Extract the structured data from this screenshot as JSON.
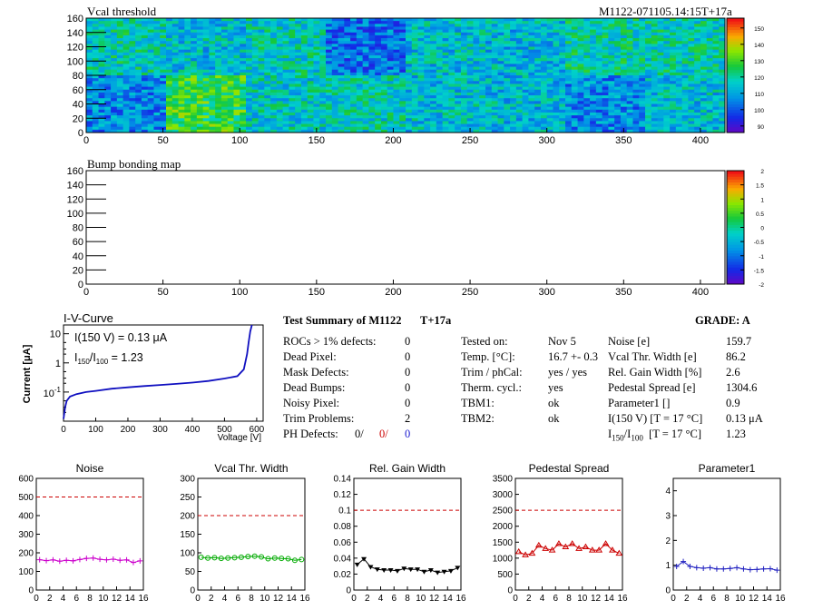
{
  "header": {
    "vcal_title": "Vcal threshold",
    "module_id": "M1122-071105.14:15T+17a",
    "bump_title": "Bump bonding map"
  },
  "colors": {
    "accent_red": "#cc0000",
    "accent_blue": "#1a1ad0",
    "iv_line": "#1010c0",
    "magenta": "#cc00cc",
    "green": "#00aa00",
    "red_line": "#cc0000"
  },
  "chart_data": [
    {
      "type": "heatmap",
      "name": "vcal",
      "title": "Vcal threshold",
      "xlim": [
        0,
        416
      ],
      "ylim": [
        0,
        160
      ],
      "x_ticks": [
        "0",
        "50",
        "100",
        "150",
        "200",
        "250",
        "300",
        "350",
        "400"
      ],
      "y_ticks": [
        "0",
        "20",
        "40",
        "60",
        "80",
        "100",
        "120",
        "140",
        "160"
      ],
      "colorbar_ticks": [
        "90",
        "100",
        "110",
        "120",
        "130",
        "140",
        "150"
      ],
      "colorbar_range": [
        86,
        156
      ],
      "roc_grid": {
        "cols": 8,
        "rows": 2,
        "roc_width": 52,
        "roc_height": 80
      },
      "roc_mean_top": [
        118,
        114,
        117,
        103,
        114,
        113,
        119,
        118
      ],
      "roc_mean_bottom": [
        106,
        128,
        116,
        117,
        114,
        113,
        106,
        114
      ]
    },
    {
      "type": "heatmap",
      "name": "bump",
      "title": "Bump bonding map",
      "xlim": [
        0,
        416
      ],
      "ylim": [
        0,
        160
      ],
      "x_ticks": [
        "0",
        "50",
        "100",
        "150",
        "200",
        "250",
        "300",
        "350",
        "400"
      ],
      "y_ticks": [
        "0",
        "20",
        "40",
        "60",
        "80",
        "100",
        "120",
        "140",
        "160"
      ],
      "colorbar_ticks": [
        "2",
        "1.5",
        "1",
        "0.5",
        "0",
        "-0.5",
        "-1",
        "-1.5",
        "-2"
      ],
      "colorbar_range": [
        -2,
        2
      ]
    },
    {
      "type": "line",
      "name": "iv",
      "title": "I-V-Curve",
      "xlabel": "Voltage [V]",
      "ylabel": "Current [μA]",
      "xlim": [
        0,
        620
      ],
      "ylim_log": [
        0.01,
        20
      ],
      "x_ticks": [
        "0",
        "100",
        "200",
        "300",
        "400",
        "500",
        "600"
      ],
      "y_ticks": [
        "10",
        "1",
        "10^-1"
      ],
      "annotation_1": "I(150 V) = 0.13 μA",
      "annotation_2_main": "I",
      "annotation_2_sub1": "150",
      "annotation_2_slash": "/I",
      "annotation_2_sub2": "100",
      "annotation_2_value": " =  1.23",
      "x": [
        0,
        5,
        10,
        20,
        40,
        70,
        100,
        150,
        200,
        250,
        300,
        350,
        400,
        450,
        500,
        540,
        560,
        570,
        575,
        580,
        585
      ],
      "y": [
        0.012,
        0.03,
        0.05,
        0.07,
        0.085,
        0.1,
        0.11,
        0.13,
        0.145,
        0.16,
        0.175,
        0.19,
        0.21,
        0.24,
        0.29,
        0.35,
        0.6,
        2.0,
        5.0,
        12.0,
        25.0
      ]
    },
    {
      "type": "line",
      "name": "noise",
      "title": "Noise",
      "xlim": [
        0,
        16
      ],
      "ylim": [
        0,
        600
      ],
      "x_ticks": [
        "0",
        "2",
        "4",
        "6",
        "8",
        "10",
        "12",
        "14",
        "16"
      ],
      "y_ticks": [
        "0",
        "100",
        "200",
        "300",
        "400",
        "500",
        "600"
      ],
      "ref_line": 500,
      "values": [
        163,
        158,
        162,
        155,
        160,
        157,
        164,
        170,
        172,
        165,
        162,
        166,
        160,
        162,
        148,
        157
      ]
    },
    {
      "type": "line",
      "name": "vcalw",
      "title": "Vcal Thr. Width",
      "xlim": [
        0,
        16
      ],
      "ylim": [
        0,
        300
      ],
      "x_ticks": [
        "0",
        "2",
        "4",
        "6",
        "8",
        "10",
        "12",
        "14",
        "16"
      ],
      "y_ticks": [
        "0",
        "50",
        "100",
        "150",
        "200",
        "250",
        "300"
      ],
      "ref_line": 200,
      "values": [
        88,
        86,
        87,
        85,
        86,
        87,
        88,
        90,
        91,
        89,
        84,
        86,
        85,
        84,
        80,
        82
      ]
    },
    {
      "type": "line",
      "name": "gain",
      "title": "Rel. Gain Width",
      "xlim": [
        0,
        16
      ],
      "ylim": [
        0,
        0.14
      ],
      "x_ticks": [
        "0",
        "2",
        "4",
        "6",
        "8",
        "10",
        "12",
        "14",
        "16"
      ],
      "y_ticks": [
        "0",
        "0.02",
        "0.04",
        "0.06",
        "0.08",
        "0.1",
        "0.12",
        "0.14"
      ],
      "ref_line": 0.1,
      "values": [
        0.032,
        0.039,
        0.029,
        0.026,
        0.025,
        0.025,
        0.024,
        0.027,
        0.026,
        0.026,
        0.023,
        0.025,
        0.022,
        0.023,
        0.024,
        0.028
      ]
    },
    {
      "type": "line",
      "name": "pedestal",
      "title": "Pedestal Spread",
      "xlim": [
        0,
        16
      ],
      "ylim": [
        0,
        3500
      ],
      "x_ticks": [
        "0",
        "2",
        "4",
        "6",
        "8",
        "10",
        "12",
        "14",
        "16"
      ],
      "y_ticks": [
        "0",
        "500",
        "1000",
        "1500",
        "2000",
        "2500",
        "3000",
        "3500"
      ],
      "ref_line": 2500,
      "values": [
        1200,
        1100,
        1150,
        1400,
        1300,
        1250,
        1450,
        1350,
        1450,
        1300,
        1350,
        1250,
        1250,
        1450,
        1250,
        1150
      ]
    },
    {
      "type": "line",
      "name": "param1",
      "title": "Parameter1",
      "xlim": [
        0,
        16
      ],
      "ylim": [
        0,
        4.5
      ],
      "x_ticks": [
        "0",
        "2",
        "4",
        "6",
        "8",
        "10",
        "12",
        "14",
        "16"
      ],
      "y_ticks": [
        "0",
        "1",
        "2",
        "3",
        "4"
      ],
      "values": [
        0.95,
        1.15,
        0.95,
        0.9,
        0.88,
        0.9,
        0.85,
        0.85,
        0.87,
        0.9,
        0.85,
        0.82,
        0.83,
        0.85,
        0.86,
        0.8
      ]
    }
  ],
  "summary": {
    "title": "Test Summary of M1122",
    "tag": "T+17a",
    "grade_label": "GRADE:  A",
    "rows": [
      {
        "label": "ROCs > 1% defects:",
        "value": "0"
      },
      {
        "label": "Dead Pixel:",
        "value": "0"
      },
      {
        "label": "Mask Defects:",
        "value": "0"
      },
      {
        "label": "Dead Bumps:",
        "value": "0"
      },
      {
        "label": "Noisy Pixel:",
        "value": "0"
      },
      {
        "label": "Trim Problems:",
        "value": "2"
      }
    ],
    "ph_label": "PH Defects:",
    "ph_values": [
      "0/",
      "0/",
      "0"
    ],
    "tested_rows": [
      {
        "label": "Tested on:",
        "value": "Nov 5"
      },
      {
        "label": "Temp. [°C]:",
        "value": "16.7 +- 0.3"
      },
      {
        "label": "Trim / phCal:",
        "value": "yes / yes"
      },
      {
        "label": "Therm. cycl.:",
        "value": "yes"
      },
      {
        "label": "TBM1:",
        "value": "ok"
      },
      {
        "label": "TBM2:",
        "value": "ok"
      }
    ],
    "param_rows": [
      {
        "label": "Noise [e]",
        "value": "159.7"
      },
      {
        "label": "Vcal Thr. Width [e]",
        "value": "86.2"
      },
      {
        "label": "Rel. Gain Width [%]",
        "value": "2.6"
      },
      {
        "label": "Pedestal Spread [e]",
        "value": "1304.6"
      },
      {
        "label": "Parameter1 []",
        "value": "0.9"
      },
      {
        "label": "I(150 V) [T = 17 °C]",
        "value": "0.13 μA"
      }
    ],
    "ratio_label_main": "I",
    "ratio_label_sub1": "150",
    "ratio_label_slash": "/I",
    "ratio_label_sub2": "100",
    "ratio_label_rest": "  [T = 17 °C]",
    "ratio_value": "1.23"
  }
}
